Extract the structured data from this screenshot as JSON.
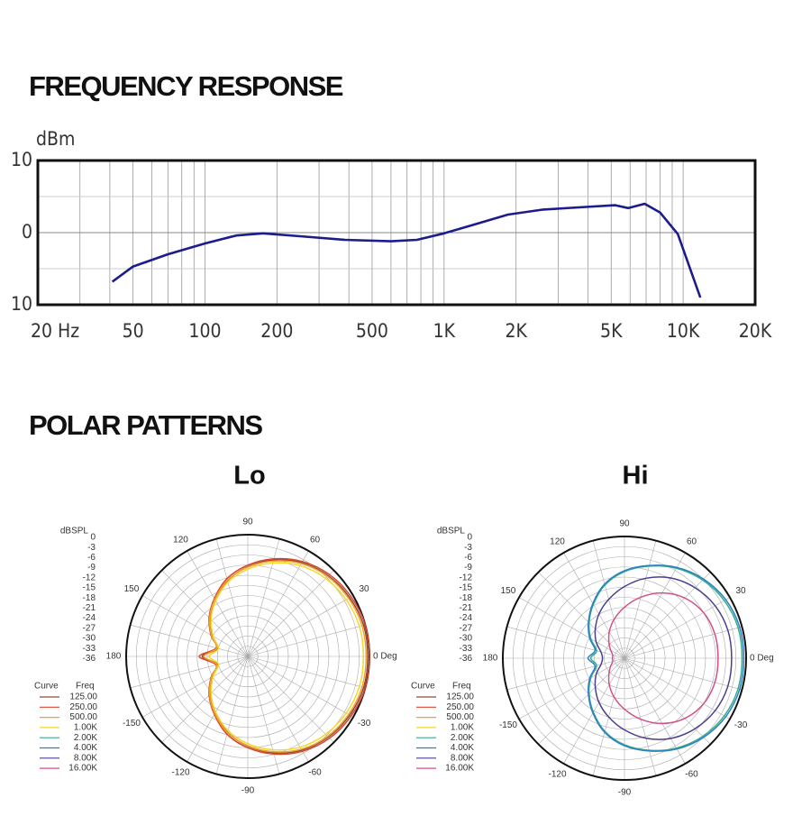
{
  "headings": [
    "FREQUENCY RESPONSE",
    "POLAR PATTERNS"
  ],
  "chart_data": [
    {
      "type": "line",
      "ylabel": "dBm",
      "xscale": "log",
      "xlim": [
        20,
        20000
      ],
      "xticks": [
        {
          "value": 20,
          "label": "20  Hz"
        },
        50,
        100,
        200,
        500,
        {
          "value": 1000,
          "label": "1K"
        },
        {
          "value": 2000,
          "label": "2K"
        },
        {
          "value": 5000,
          "label": "5K"
        },
        {
          "value": 10000,
          "label": "10K"
        },
        {
          "value": 20000,
          "label": "20K"
        }
      ],
      "xminor": [
        30,
        40,
        60,
        70,
        80,
        90,
        300,
        400,
        600,
        700,
        800,
        900,
        3000,
        4000,
        6000,
        7000,
        8000,
        9000
      ],
      "ylim": [
        -10,
        10
      ],
      "yticks": [
        {
          "value": -10,
          "label": "10"
        },
        0,
        10
      ],
      "yminor": [
        -5,
        5
      ],
      "x": [
        41,
        50,
        70,
        100,
        135,
        175,
        250,
        385,
        600,
        770,
        1000,
        1300,
        1850,
        2600,
        3650,
        5200,
        5900,
        6900,
        8000,
        9500,
        11800
      ],
      "series": [
        {
          "color": "#1c1c8c",
          "values": [
            -6.8,
            -4.7,
            -3,
            -1.5,
            -0.4,
            -0.1,
            -0.5,
            -1,
            -1.2,
            -1,
            -0.1,
            1,
            2.5,
            3.2,
            3.5,
            3.8,
            3.4,
            4,
            2.8,
            -0.2,
            -9
          ]
        }
      ]
    },
    {
      "type": "polar",
      "title": "Lo",
      "rlabel": "dBSPL",
      "rlim": [
        -36,
        0
      ],
      "rticks": [
        0,
        -3,
        -6,
        -9,
        -12,
        -15,
        -18,
        -21,
        -24,
        -27,
        -30,
        -33,
        -36
      ],
      "theta": [
        0,
        15,
        30,
        45,
        60,
        75,
        90,
        105,
        120,
        135,
        150,
        165,
        180,
        195,
        210,
        225,
        240,
        255,
        270,
        285,
        300,
        315,
        330,
        345
      ],
      "thetaticks": [
        {
          "value": 0,
          "label": "0 Deg"
        },
        30,
        60,
        90,
        120,
        150,
        180,
        -150,
        -120,
        -90,
        -60,
        -30
      ],
      "legend_title": [
        "Curve",
        "Freq"
      ],
      "series": [
        {
          "name": "125.00",
          "color": "#8b4a3a",
          "values": [
            -0.5,
            -0.5,
            -1.2,
            -2.3,
            -4,
            -6.5,
            -9.5,
            -12.8,
            -16.8,
            -20.3,
            -23.8,
            -26.8,
            -22.5,
            -26.8,
            -23.8,
            -20.3,
            -16.8,
            -12.8,
            -9.5,
            -6.5,
            -4,
            -2.3,
            -1.2,
            -0.5
          ]
        },
        {
          "name": "250.00",
          "color": "#d9452a",
          "values": [
            0,
            0,
            -0.7,
            -1.8,
            -3.6,
            -6.1,
            -9,
            -12.2,
            -16.2,
            -19.8,
            -23.4,
            -26.3,
            -21.6,
            -26.3,
            -23.4,
            -19.8,
            -16.2,
            -12.2,
            -9,
            -6.1,
            -3.6,
            -1.8,
            -0.7,
            0
          ]
        },
        {
          "name": "500.00",
          "color": "#f0a030",
          "values": [
            -1,
            -1,
            -1.6,
            -2.6,
            -4.3,
            -6.8,
            -9.6,
            -12.7,
            -16.5,
            -20,
            -23.6,
            -26.5,
            -23,
            -26.5,
            -23.6,
            -20,
            -16.5,
            -12.7,
            -9.6,
            -6.8,
            -4.3,
            -2.6,
            -1.6,
            -1
          ]
        },
        {
          "name": "1.00K",
          "color": "#f2d92a",
          "values": [
            -1.8,
            -1.8,
            -2.4,
            -3.4,
            -5,
            -7.4,
            -10.2,
            -13.3,
            -17,
            -20.6,
            -24.2,
            -27,
            -24.5,
            -27,
            -24.2,
            -20.6,
            -17,
            -13.3,
            -10.2,
            -7.4,
            -5,
            -3.4,
            -2.4,
            -1.8
          ]
        },
        {
          "name": "2.00K",
          "color": "#3aaa8c"
        },
        {
          "name": "4.00K",
          "color": "#2a80c4"
        },
        {
          "name": "8.00K",
          "color": "#4a3f8f"
        },
        {
          "name": "16.00K",
          "color": "#d0508a"
        }
      ]
    },
    {
      "type": "polar",
      "title": "Hi",
      "rlabel": "dBSPL",
      "rlim": [
        -36,
        0
      ],
      "rticks": [
        0,
        -3,
        -6,
        -9,
        -12,
        -15,
        -18,
        -21,
        -24,
        -27,
        -30,
        -33,
        -36
      ],
      "theta": [
        0,
        15,
        30,
        45,
        60,
        75,
        90,
        105,
        120,
        135,
        150,
        165,
        180,
        195,
        210,
        225,
        240,
        255,
        270,
        285,
        300,
        315,
        330,
        345
      ],
      "thetaticks": [
        {
          "value": 0,
          "label": "0 Deg"
        },
        30,
        60,
        90,
        120,
        150,
        180,
        -150,
        -120,
        -90,
        -60,
        -30
      ],
      "legend_title": [
        "Curve",
        "Freq"
      ],
      "series": [
        {
          "name": "125.00",
          "color": "#8b4a3a"
        },
        {
          "name": "250.00",
          "color": "#d9452a"
        },
        {
          "name": "500.00",
          "color": "#f0a030"
        },
        {
          "name": "1.00K",
          "color": "#f2d92a"
        },
        {
          "name": "2.00K",
          "color": "#3aaa8c",
          "values": [
            -1.2,
            -1.2,
            -1.9,
            -3.3,
            -5.3,
            -7.8,
            -10.4,
            -13.6,
            -17.6,
            -21.2,
            -24.5,
            -27.5,
            -26,
            -27.5,
            -24.5,
            -21.2,
            -17.6,
            -13.6,
            -10.4,
            -7.8,
            -5.3,
            -3.3,
            -1.9,
            -1.2
          ]
        },
        {
          "name": "4.00K",
          "color": "#2a80c4",
          "values": [
            -0.7,
            -0.7,
            -1.4,
            -2.9,
            -5,
            -7.6,
            -10.1,
            -13.3,
            -17.3,
            -20.9,
            -24.1,
            -27,
            -25.2,
            -27,
            -24.1,
            -20.9,
            -17.3,
            -13.3,
            -10.1,
            -7.6,
            -5,
            -2.9,
            -1.4,
            -0.7
          ]
        },
        {
          "name": "8.00K",
          "color": "#4a3f8f",
          "values": [
            -4.3,
            -4.3,
            -5,
            -6.5,
            -8.6,
            -11.5,
            -14.8,
            -18,
            -20.9,
            -23.8,
            -26.3,
            -28.8,
            -29.5,
            -28.8,
            -26.3,
            -23.8,
            -20.9,
            -18,
            -14.8,
            -11.5,
            -8.6,
            -6.5,
            -5,
            -4.3
          ]
        },
        {
          "name": "16.00K",
          "color": "#d0508a",
          "values": [
            -8.3,
            -8.3,
            -9,
            -10.8,
            -13.7,
            -17.3,
            -20.9,
            -24.1,
            -27,
            -29.5,
            -31.3,
            -32.4,
            -32.4,
            -32.4,
            -31.3,
            -29.5,
            -27,
            -24.1,
            -20.9,
            -17.3,
            -13.7,
            -10.8,
            -9,
            -8.3
          ]
        }
      ]
    }
  ]
}
